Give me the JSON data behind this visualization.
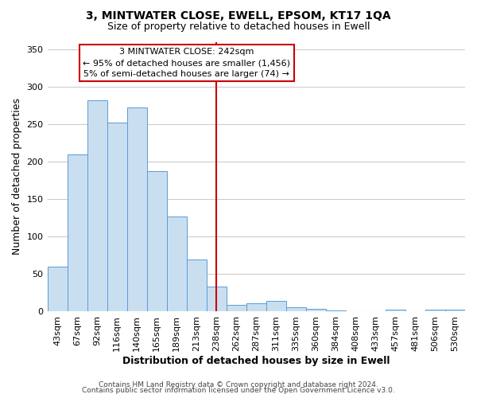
{
  "title": "3, MINTWATER CLOSE, EWELL, EPSOM, KT17 1QA",
  "subtitle": "Size of property relative to detached houses in Ewell",
  "xlabel": "Distribution of detached houses by size in Ewell",
  "ylabel": "Number of detached properties",
  "footer_line1": "Contains HM Land Registry data © Crown copyright and database right 2024.",
  "footer_line2": "Contains public sector information licensed under the Open Government Licence v3.0.",
  "bar_labels": [
    "43sqm",
    "67sqm",
    "92sqm",
    "116sqm",
    "140sqm",
    "165sqm",
    "189sqm",
    "213sqm",
    "238sqm",
    "262sqm",
    "287sqm",
    "311sqm",
    "335sqm",
    "360sqm",
    "384sqm",
    "408sqm",
    "433sqm",
    "457sqm",
    "481sqm",
    "506sqm",
    "530sqm"
  ],
  "bar_values": [
    60,
    210,
    282,
    252,
    272,
    187,
    127,
    70,
    33,
    9,
    11,
    14,
    6,
    4,
    2,
    0,
    0,
    3,
    0,
    3,
    3
  ],
  "bar_color": "#c9dff0",
  "bar_edge_color": "#5b9bd5",
  "vline_x_index": 8,
  "vline_color": "#cc0000",
  "annotation_title": "3 MINTWATER CLOSE: 242sqm",
  "annotation_line1": "← 95% of detached houses are smaller (1,456)",
  "annotation_line2": "5% of semi-detached houses are larger (74) →",
  "annotation_box_color": "#ffffff",
  "annotation_box_edge_color": "#cc0000",
  "ylim": [
    0,
    360
  ],
  "yticks": [
    0,
    50,
    100,
    150,
    200,
    250,
    300,
    350
  ],
  "background_color": "#ffffff",
  "grid_color": "#cccccc",
  "title_fontsize": 10,
  "subtitle_fontsize": 9,
  "xlabel_fontsize": 9,
  "ylabel_fontsize": 9,
  "tick_fontsize": 8,
  "annotation_fontsize": 8,
  "footer_fontsize": 6.5
}
